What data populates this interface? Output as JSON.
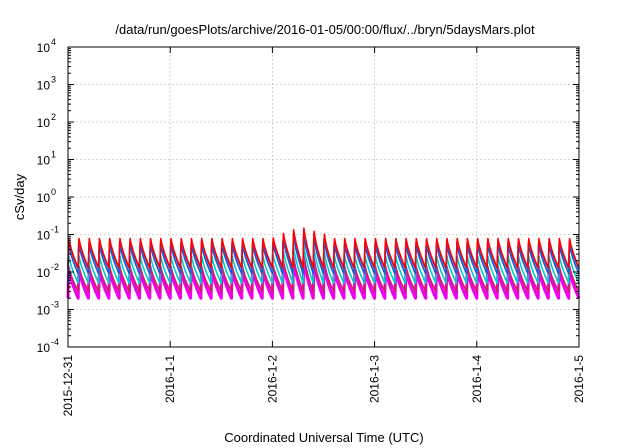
{
  "chart_data": {
    "type": "line",
    "title": "/data/run/goesPlots/archive/2016-01-05/00:00/flux/../bryn/5daysMars.plot",
    "xlabel": "Coordinated Universal Time (UTC)",
    "ylabel": "cSv/day",
    "yscale": "log",
    "ylim": [
      0.0001,
      10000
    ],
    "xlim": [
      "2015-12-31",
      "2016-01-05"
    ],
    "grid": true,
    "legend": "none",
    "x_tick_labels": [
      "2015-12-31",
      "2016-1-1",
      "2016-1-2",
      "2016-1-3",
      "2016-1-4",
      "2016-1-5"
    ],
    "y_ticks": [
      {
        "base": "10",
        "exp": "-4"
      },
      {
        "base": "10",
        "exp": "-3"
      },
      {
        "base": "10",
        "exp": "-2"
      },
      {
        "base": "10",
        "exp": "-1"
      },
      {
        "base": "10",
        "exp": "0"
      },
      {
        "base": "10",
        "exp": "1"
      },
      {
        "base": "10",
        "exp": "2"
      },
      {
        "base": "10",
        "exp": "3"
      },
      {
        "base": "10",
        "exp": "4"
      }
    ],
    "cycle_period_hours": 2.4,
    "series": [
      {
        "color": "#ee00ee",
        "peak": 0.013,
        "trough": 0.002
      },
      {
        "color": "#cc2266",
        "peak": 0.016,
        "trough": 0.003
      },
      {
        "color": "#00cccc",
        "peak": 0.03,
        "trough": 0.005
      },
      {
        "color": "#2255cc",
        "peak": 0.06,
        "trough": 0.009
      },
      {
        "color": "#1166ff",
        "peak": 0.08,
        "trough": 0.012
      },
      {
        "color": "#ff0000",
        "peak": 0.09,
        "trough": 0.013
      }
    ],
    "event": {
      "start": "2016-01-02 00:00",
      "end": "2016-01-02 14:00",
      "peak_multiplier": 2.0
    }
  }
}
